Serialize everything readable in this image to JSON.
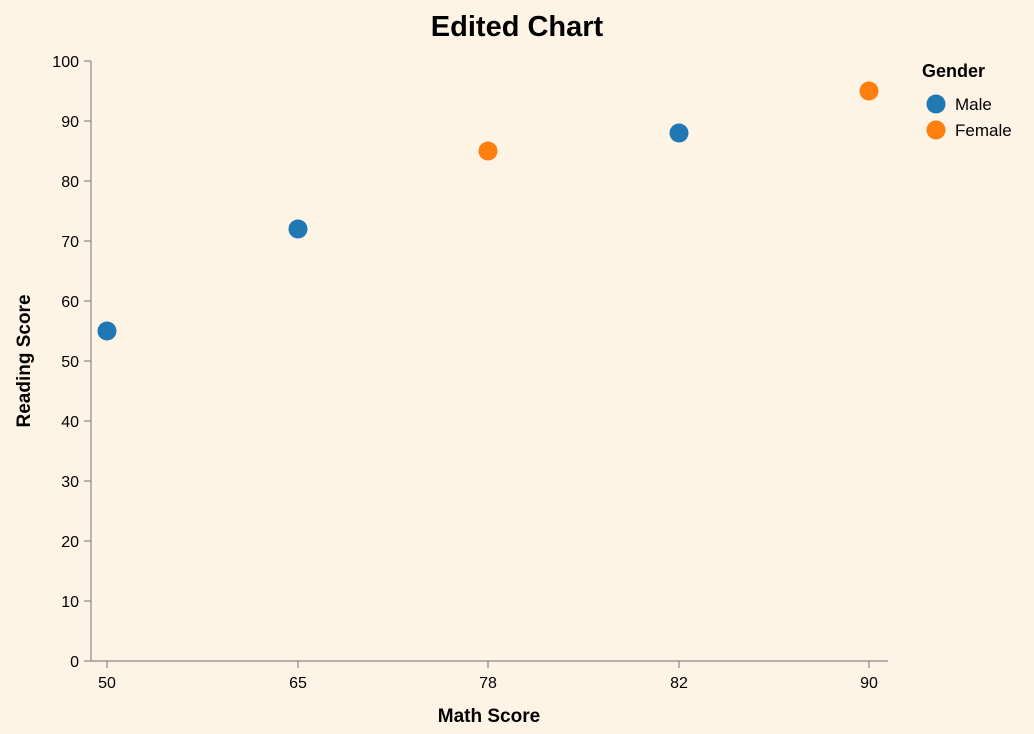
{
  "chart_data": {
    "type": "scatter",
    "title": "Edited Chart",
    "xlabel": "Math Score",
    "ylabel": "Reading Score",
    "x_scale": "point",
    "x_categories": [
      "50",
      "65",
      "78",
      "82",
      "90"
    ],
    "ylim": [
      0,
      100
    ],
    "y_ticks": [
      0,
      10,
      20,
      30,
      40,
      50,
      60,
      70,
      80,
      90,
      100
    ],
    "grid": false,
    "legend": {
      "title": "Gender",
      "placement": "top-right",
      "entries": [
        {
          "label": "Male",
          "color": "#1f77b4"
        },
        {
          "label": "Female",
          "color": "#ff7f0e"
        }
      ]
    },
    "points": [
      {
        "x": "50",
        "y": 55,
        "gender": "Male"
      },
      {
        "x": "65",
        "y": 72,
        "gender": "Male"
      },
      {
        "x": "78",
        "y": 85,
        "gender": "Female"
      },
      {
        "x": "82",
        "y": 88,
        "gender": "Male"
      },
      {
        "x": "90",
        "y": 95,
        "gender": "Female"
      }
    ]
  }
}
